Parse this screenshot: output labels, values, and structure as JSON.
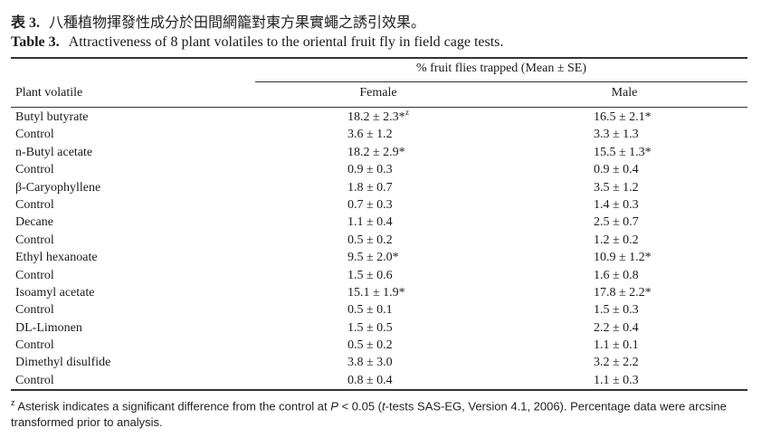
{
  "title_zh": {
    "label": "表 3.",
    "text": "八種植物揮發性成分於田間網籠對東方果實蠅之誘引效果。"
  },
  "title_en": {
    "label": "Table 3.",
    "text": "Attractiveness of 8 plant volatiles to the oriental fruit fly in field cage tests."
  },
  "header": {
    "group": "% fruit flies trapped (Mean ± SE)",
    "plant": "Plant volatile",
    "female": "Female",
    "male": "Male"
  },
  "rows": [
    {
      "name": "Butyl butyrate",
      "female": "18.2 ± 2.3*",
      "female_sup": "z",
      "male": "16.5 ± 2.1*"
    },
    {
      "name": "Control",
      "female": "3.6 ± 1.2",
      "male": "3.3 ± 1.3"
    },
    {
      "name": "n-Butyl acetate",
      "female": "18.2 ± 2.9*",
      "male": "15.5 ± 1.3*"
    },
    {
      "name": "Control",
      "female": "0.9 ± 0.3",
      "male": "0.9 ± 0.4"
    },
    {
      "name": "β-Caryophyllene",
      "female": "1.8 ± 0.7",
      "male": "3.5 ± 1.2"
    },
    {
      "name": "Control",
      "female": "0.7 ± 0.3",
      "male": "1.4 ± 0.3"
    },
    {
      "name": "Decane",
      "female": "1.1 ± 0.4",
      "male": "2.5 ± 0.7"
    },
    {
      "name": "Control",
      "female": "0.5 ± 0.2",
      "male": "1.2 ± 0.2"
    },
    {
      "name": "Ethyl hexanoate",
      "female": "9.5 ± 2.0*",
      "male": "10.9 ± 1.2*"
    },
    {
      "name": "Control",
      "female": "1.5 ± 0.6",
      "male": "1.6 ± 0.8"
    },
    {
      "name": "Isoamyl acetate",
      "female": "15.1 ± 1.9*",
      "male": "17.8 ± 2.2*"
    },
    {
      "name": "Control",
      "female": "0.5 ± 0.1",
      "male": "1.5 ± 0.3"
    },
    {
      "name": "DL-Limonen",
      "female": "1.5 ± 0.5",
      "male": "2.2 ± 0.4"
    },
    {
      "name": "Control",
      "female": "0.5 ± 0.2",
      "male": "1.1 ± 0.1"
    },
    {
      "name": "Dimethyl disulfide",
      "female": "3.8 ± 3.0",
      "male": "3.2 ± 2.2"
    },
    {
      "name": "Control",
      "female": "0.8 ± 0.4",
      "male": "1.1 ± 0.3"
    }
  ],
  "footnote": {
    "marker": "z",
    "text_1": " Asterisk indicates a significant difference from the control at ",
    "p": "P",
    "text_2": " < 0.05 (",
    "t": "t",
    "text_3": "-tests SAS-EG, Version 4.1, 2006). Percentage data were arcsine transformed prior to analysis."
  }
}
